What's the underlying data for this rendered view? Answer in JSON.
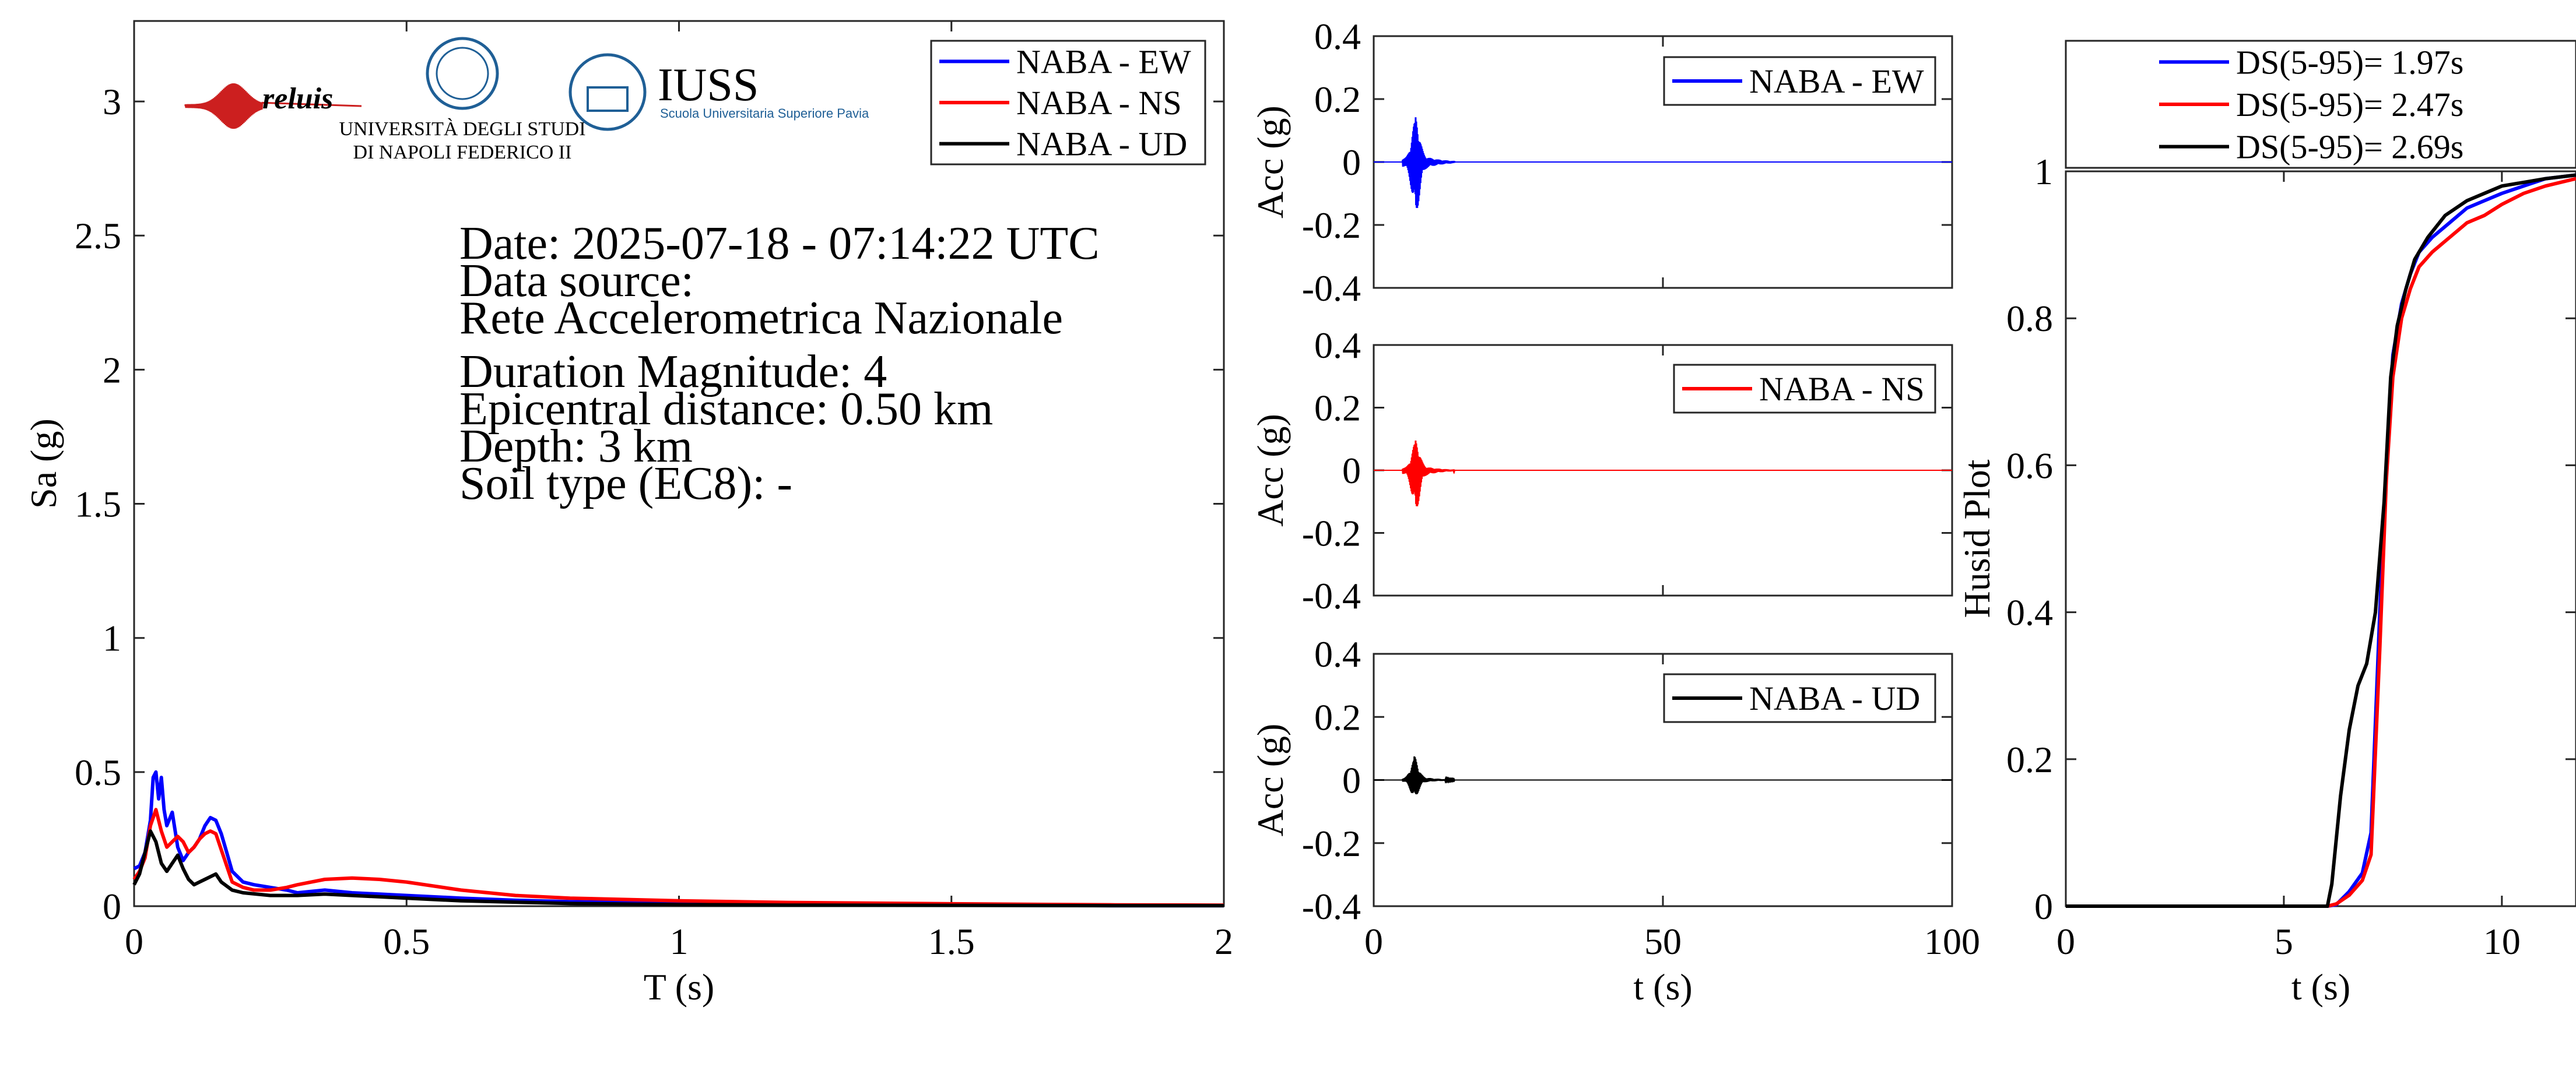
{
  "colors": {
    "ew": "#0000ff",
    "ns": "#ff0000",
    "ud": "#000000",
    "logo_blue": "#1f5f96",
    "reluis_red": "#cc1f1f"
  },
  "logos": {
    "reluis": "reluis",
    "unina_line1": "UNIVERSITÀ DEGLI STUDI",
    "unina_line2": "DI NAPOLI FEDERICO II",
    "iuss_title": "IUSS",
    "iuss_sub": "Scuola Universitaria Superiore Pavia"
  },
  "info": {
    "date": "Date: 2025-07-18 - 07:14:22 UTC",
    "source_label": "Data source:",
    "source": "Rete Accelerometrica Nazionale",
    "magnitude": "Duration Magnitude: 4",
    "distance": "Epicentral distance: 0.50 km",
    "depth": "Depth: 3 km",
    "soil": "Soil type (EC8): -"
  },
  "chart_data": [
    {
      "type": "line",
      "title": "",
      "xlabel": "T (s)",
      "ylabel": "Sa (g)",
      "xlim": [
        0,
        2
      ],
      "ylim": [
        0,
        3.3
      ],
      "xticks": [
        0,
        0.5,
        1,
        1.5,
        2
      ],
      "xtick_labels": [
        "0",
        "0.5",
        "1",
        "1.5",
        "2"
      ],
      "yticks": [
        0,
        0.5,
        1,
        1.5,
        2,
        2.5,
        3
      ],
      "ytick_labels": [
        "0",
        "0.5",
        "1",
        "1.5",
        "2",
        "2.5",
        "3"
      ],
      "legend_position": "top-right",
      "series": [
        {
          "name": "NABA - EW",
          "color": "#0000ff",
          "x": [
            0,
            0.01,
            0.02,
            0.03,
            0.035,
            0.04,
            0.045,
            0.05,
            0.055,
            0.06,
            0.07,
            0.08,
            0.09,
            0.1,
            0.11,
            0.12,
            0.13,
            0.14,
            0.15,
            0.16,
            0.17,
            0.18,
            0.2,
            0.22,
            0.25,
            0.28,
            0.3,
            0.35,
            0.4,
            0.45,
            0.5,
            0.6,
            0.7,
            0.8,
            1.0,
            1.2,
            1.5,
            1.8,
            2.0
          ],
          "y": [
            0.14,
            0.15,
            0.2,
            0.32,
            0.48,
            0.5,
            0.4,
            0.48,
            0.36,
            0.3,
            0.35,
            0.22,
            0.17,
            0.2,
            0.22,
            0.25,
            0.3,
            0.33,
            0.32,
            0.27,
            0.2,
            0.13,
            0.09,
            0.08,
            0.07,
            0.06,
            0.05,
            0.06,
            0.05,
            0.045,
            0.04,
            0.03,
            0.022,
            0.017,
            0.01,
            0.007,
            0.004,
            0.002,
            0.002
          ]
        },
        {
          "name": "NABA - NS",
          "color": "#ff0000",
          "x": [
            0,
            0.01,
            0.02,
            0.03,
            0.04,
            0.05,
            0.06,
            0.07,
            0.08,
            0.09,
            0.1,
            0.11,
            0.12,
            0.13,
            0.14,
            0.15,
            0.16,
            0.17,
            0.18,
            0.2,
            0.22,
            0.25,
            0.28,
            0.3,
            0.35,
            0.4,
            0.45,
            0.5,
            0.6,
            0.7,
            0.8,
            1.0,
            1.2,
            1.5,
            1.8,
            2.0
          ],
          "y": [
            0.1,
            0.13,
            0.18,
            0.3,
            0.36,
            0.28,
            0.22,
            0.24,
            0.26,
            0.24,
            0.2,
            0.22,
            0.25,
            0.27,
            0.28,
            0.27,
            0.21,
            0.15,
            0.09,
            0.07,
            0.06,
            0.06,
            0.07,
            0.08,
            0.1,
            0.105,
            0.1,
            0.09,
            0.06,
            0.04,
            0.03,
            0.02,
            0.014,
            0.009,
            0.005,
            0.004
          ]
        },
        {
          "name": "NABA - UD",
          "color": "#000000",
          "x": [
            0,
            0.01,
            0.02,
            0.03,
            0.04,
            0.05,
            0.06,
            0.07,
            0.08,
            0.09,
            0.1,
            0.11,
            0.12,
            0.13,
            0.14,
            0.15,
            0.16,
            0.18,
            0.2,
            0.25,
            0.3,
            0.35,
            0.4,
            0.45,
            0.5,
            0.6,
            0.7,
            0.8,
            1.0,
            1.2,
            1.5,
            1.8,
            2.0
          ],
          "y": [
            0.08,
            0.12,
            0.2,
            0.28,
            0.24,
            0.16,
            0.13,
            0.16,
            0.19,
            0.14,
            0.1,
            0.08,
            0.09,
            0.1,
            0.11,
            0.12,
            0.09,
            0.06,
            0.05,
            0.04,
            0.04,
            0.045,
            0.04,
            0.035,
            0.03,
            0.02,
            0.015,
            0.01,
            0.006,
            0.004,
            0.003,
            0.002,
            0.002
          ]
        }
      ]
    },
    {
      "type": "line",
      "title": "",
      "xlabel": "",
      "ylabel": "Acc (g)",
      "xlim": [
        0,
        100
      ],
      "ylim": [
        -0.4,
        0.4
      ],
      "xticks": [
        0,
        50,
        100
      ],
      "xtick_labels": [
        "",
        "",
        ""
      ],
      "yticks": [
        -0.4,
        -0.2,
        0,
        0.2,
        0.4
      ],
      "ytick_labels": [
        "-0.4",
        "-0.2",
        "0",
        "0.2",
        "0.4"
      ],
      "legend_position": "top-right",
      "series": [
        {
          "name": "NABA - EW",
          "color": "#0000ff",
          "peak_positive": 0.12,
          "peak_negative": -0.14,
          "peak_time": 7.2,
          "duration_s": 100
        }
      ]
    },
    {
      "type": "line",
      "title": "",
      "xlabel": "",
      "ylabel": "Acc (g)",
      "xlim": [
        0,
        100
      ],
      "ylim": [
        -0.4,
        0.4
      ],
      "xticks": [
        0,
        50,
        100
      ],
      "xtick_labels": [
        "",
        "",
        ""
      ],
      "yticks": [
        -0.4,
        -0.2,
        0,
        0.2,
        0.4
      ],
      "ytick_labels": [
        "-0.4",
        "-0.2",
        "0",
        "0.2",
        "0.4"
      ],
      "legend_position": "top-right",
      "series": [
        {
          "name": "NABA - NS",
          "color": "#ff0000",
          "peak_positive": 0.08,
          "peak_negative": -0.11,
          "peak_time": 7.2,
          "duration_s": 100
        }
      ]
    },
    {
      "type": "line",
      "title": "",
      "xlabel": "t (s)",
      "ylabel": "Acc (g)",
      "xlim": [
        0,
        100
      ],
      "ylim": [
        -0.4,
        0.4
      ],
      "xticks": [
        0,
        50,
        100
      ],
      "xtick_labels": [
        "0",
        "50",
        "100"
      ],
      "yticks": [
        -0.4,
        -0.2,
        0,
        0.2,
        0.4
      ],
      "ytick_labels": [
        "-0.4",
        "-0.2",
        "0",
        "0.2",
        "0.4"
      ],
      "legend_position": "top-right",
      "series": [
        {
          "name": "NABA - UD",
          "color": "#000000",
          "peak_positive": 0.06,
          "peak_negative": -0.05,
          "peak_time": 7.0,
          "duration_s": 100
        }
      ]
    },
    {
      "type": "line",
      "title": "",
      "xlabel": "t (s)",
      "ylabel": "Husid Plot",
      "xlim": [
        0,
        11.7
      ],
      "ylim": [
        0,
        1
      ],
      "xticks": [
        0,
        5,
        10
      ],
      "xtick_labels": [
        "0",
        "5",
        "10"
      ],
      "yticks": [
        0,
        0.2,
        0.4,
        0.6,
        0.8,
        1
      ],
      "ytick_labels": [
        "0",
        "0.2",
        "0.4",
        "0.6",
        "0.8",
        "1"
      ],
      "legend_position": "top",
      "series": [
        {
          "name": "DS(5-95)= 1.97s",
          "color": "#0000ff",
          "x": [
            0,
            6.0,
            6.2,
            6.5,
            6.8,
            7.0,
            7.2,
            7.35,
            7.5,
            7.7,
            7.9,
            8.1,
            8.4,
            8.8,
            9.2,
            9.6,
            10.0,
            10.5,
            11.0,
            11.7
          ],
          "y": [
            0,
            0,
            0.002,
            0.02,
            0.045,
            0.1,
            0.4,
            0.6,
            0.75,
            0.82,
            0.86,
            0.89,
            0.91,
            0.93,
            0.95,
            0.96,
            0.97,
            0.98,
            0.99,
            0.995
          ]
        },
        {
          "name": "DS(5-95)= 2.47s",
          "color": "#ff0000",
          "x": [
            0,
            6.0,
            6.2,
            6.5,
            6.8,
            7.0,
            7.2,
            7.35,
            7.5,
            7.7,
            7.9,
            8.1,
            8.4,
            8.8,
            9.2,
            9.6,
            10.0,
            10.5,
            11.0,
            11.7
          ],
          "y": [
            0,
            0,
            0.003,
            0.015,
            0.035,
            0.07,
            0.35,
            0.58,
            0.72,
            0.8,
            0.84,
            0.87,
            0.89,
            0.91,
            0.93,
            0.94,
            0.955,
            0.97,
            0.98,
            0.99
          ]
        },
        {
          "name": "DS(5-95)= 2.69s",
          "color": "#000000",
          "x": [
            0,
            6.0,
            6.1,
            6.3,
            6.5,
            6.7,
            6.9,
            7.1,
            7.3,
            7.45,
            7.6,
            7.8,
            8.0,
            8.3,
            8.7,
            9.2,
            9.6,
            10.0,
            10.5,
            11.0,
            11.7
          ],
          "y": [
            0,
            0,
            0.03,
            0.15,
            0.24,
            0.3,
            0.33,
            0.4,
            0.55,
            0.72,
            0.79,
            0.84,
            0.88,
            0.91,
            0.94,
            0.96,
            0.97,
            0.98,
            0.985,
            0.99,
            0.995
          ]
        }
      ]
    }
  ]
}
